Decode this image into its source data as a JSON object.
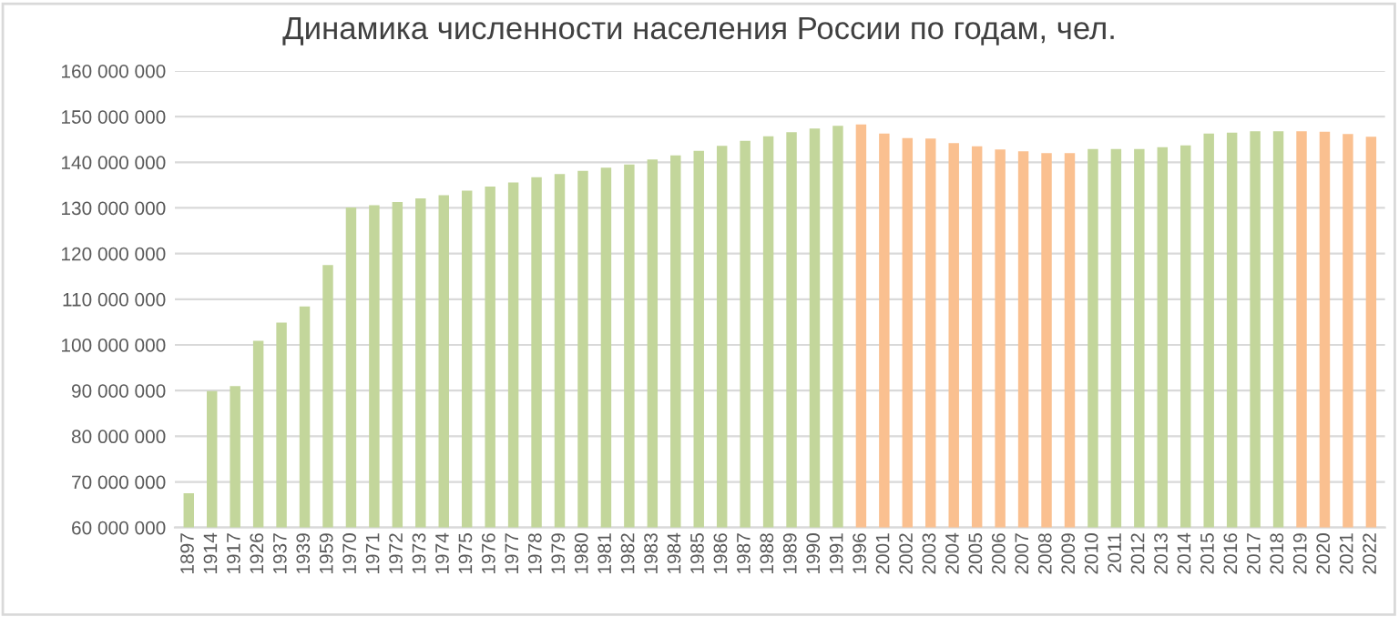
{
  "chart_data": {
    "type": "bar",
    "title": "Динамика численности населения России по годам, чел.",
    "categories": [
      "1897",
      "1914",
      "1917",
      "1926",
      "1937",
      "1939",
      "1959",
      "1970",
      "1971",
      "1972",
      "1973",
      "1974",
      "1975",
      "1976",
      "1977",
      "1978",
      "1979",
      "1980",
      "1981",
      "1982",
      "1983",
      "1984",
      "1985",
      "1986",
      "1987",
      "1988",
      "1989",
      "1990",
      "1991",
      "1996",
      "2001",
      "2002",
      "2003",
      "2004",
      "2005",
      "2006",
      "2007",
      "2008",
      "2009",
      "2010",
      "2011",
      "2012",
      "2013",
      "2014",
      "2015",
      "2016",
      "2017",
      "2018",
      "2019",
      "2020",
      "2021",
      "2022"
    ],
    "values": [
      67500000,
      89900000,
      91000000,
      100900000,
      104900000,
      108400000,
      117500000,
      130100000,
      130600000,
      131300000,
      132100000,
      132800000,
      133800000,
      134700000,
      135600000,
      136700000,
      137400000,
      138100000,
      138800000,
      139500000,
      140600000,
      141500000,
      142500000,
      143600000,
      144700000,
      145700000,
      146600000,
      147400000,
      148000000,
      148300000,
      146300000,
      145300000,
      145200000,
      144200000,
      143500000,
      142800000,
      142400000,
      142000000,
      142000000,
      142900000,
      142900000,
      142900000,
      143300000,
      143700000,
      146300000,
      146500000,
      146800000,
      146800000,
      146800000,
      146700000,
      146200000,
      145600000
    ],
    "colors": [
      "#c3d69b",
      "#c3d69b",
      "#c3d69b",
      "#c3d69b",
      "#c3d69b",
      "#c3d69b",
      "#c3d69b",
      "#c3d69b",
      "#c3d69b",
      "#c3d69b",
      "#c3d69b",
      "#c3d69b",
      "#c3d69b",
      "#c3d69b",
      "#c3d69b",
      "#c3d69b",
      "#c3d69b",
      "#c3d69b",
      "#c3d69b",
      "#c3d69b",
      "#c3d69b",
      "#c3d69b",
      "#c3d69b",
      "#c3d69b",
      "#c3d69b",
      "#c3d69b",
      "#c3d69b",
      "#c3d69b",
      "#c3d69b",
      "#fac090",
      "#fac090",
      "#fac090",
      "#fac090",
      "#fac090",
      "#fac090",
      "#fac090",
      "#fac090",
      "#fac090",
      "#fac090",
      "#c3d69b",
      "#c3d69b",
      "#c3d69b",
      "#c3d69b",
      "#c3d69b",
      "#c3d69b",
      "#c3d69b",
      "#c3d69b",
      "#c3d69b",
      "#fac090",
      "#fac090",
      "#fac090",
      "#fac090"
    ],
    "ylim": [
      60000000,
      160000000
    ],
    "yticks": [
      {
        "value": 60000000,
        "label": "60 000 000"
      },
      {
        "value": 70000000,
        "label": "70 000 000"
      },
      {
        "value": 80000000,
        "label": "80 000 000"
      },
      {
        "value": 90000000,
        "label": "90 000 000"
      },
      {
        "value": 100000000,
        "label": "100 000 000"
      },
      {
        "value": 110000000,
        "label": "110 000 000"
      },
      {
        "value": 120000000,
        "label": "120 000 000"
      },
      {
        "value": 130000000,
        "label": "130 000 000"
      },
      {
        "value": 140000000,
        "label": "140 000 000"
      },
      {
        "value": 150000000,
        "label": "150 000 000"
      },
      {
        "value": 160000000,
        "label": "160 000 000"
      }
    ],
    "grid": "y"
  }
}
